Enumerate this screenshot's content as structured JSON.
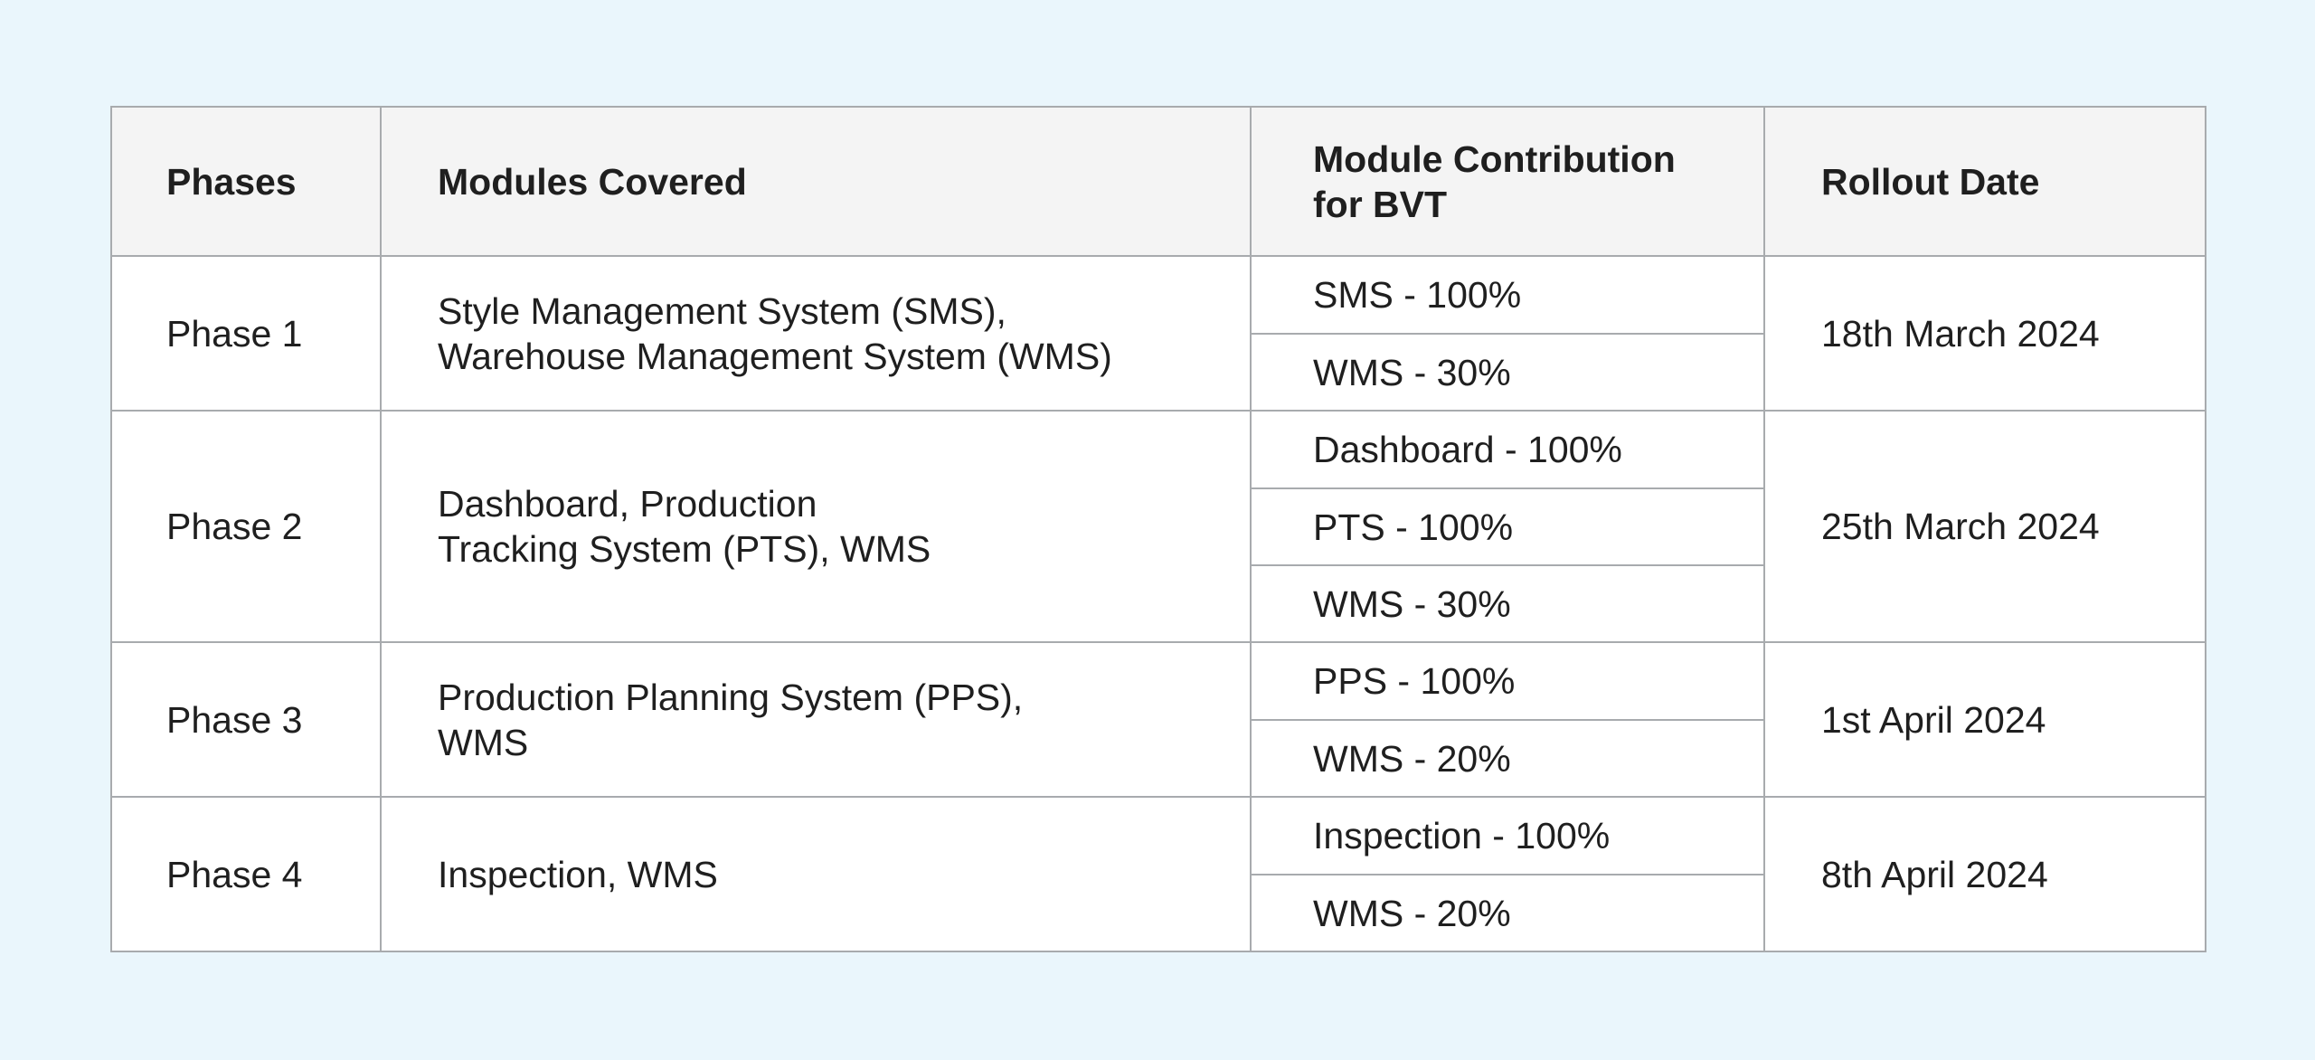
{
  "table": {
    "headers": {
      "phases": "Phases",
      "modules": "Modules Covered",
      "contribution_line1": "Module Contribution",
      "contribution_line2": "for BVT",
      "rollout": "Rollout Date"
    },
    "rows": [
      {
        "phase": "Phase 1",
        "modules_line1": "Style Management System (SMS),",
        "modules_line2": "Warehouse Management System (WMS)",
        "contributions": [
          "SMS - 100%",
          "WMS - 30%"
        ],
        "rollout": "18th March 2024"
      },
      {
        "phase": "Phase 2",
        "modules_line1": "Dashboard, Production",
        "modules_line2": "Tracking System (PTS), WMS",
        "contributions": [
          "Dashboard - 100%",
          "PTS - 100%",
          "WMS - 30%"
        ],
        "rollout": "25th March 2024"
      },
      {
        "phase": "Phase 3",
        "modules_line1": "Production Planning System (PPS),",
        "modules_line2": "WMS",
        "contributions": [
          "PPS - 100%",
          "WMS - 20%"
        ],
        "rollout": "1st April 2024"
      },
      {
        "phase": "Phase 4",
        "modules_line1": "Inspection, WMS",
        "modules_line2": "",
        "contributions": [
          "Inspection - 100%",
          "WMS - 20%"
        ],
        "rollout": "8th April 2024"
      }
    ]
  }
}
